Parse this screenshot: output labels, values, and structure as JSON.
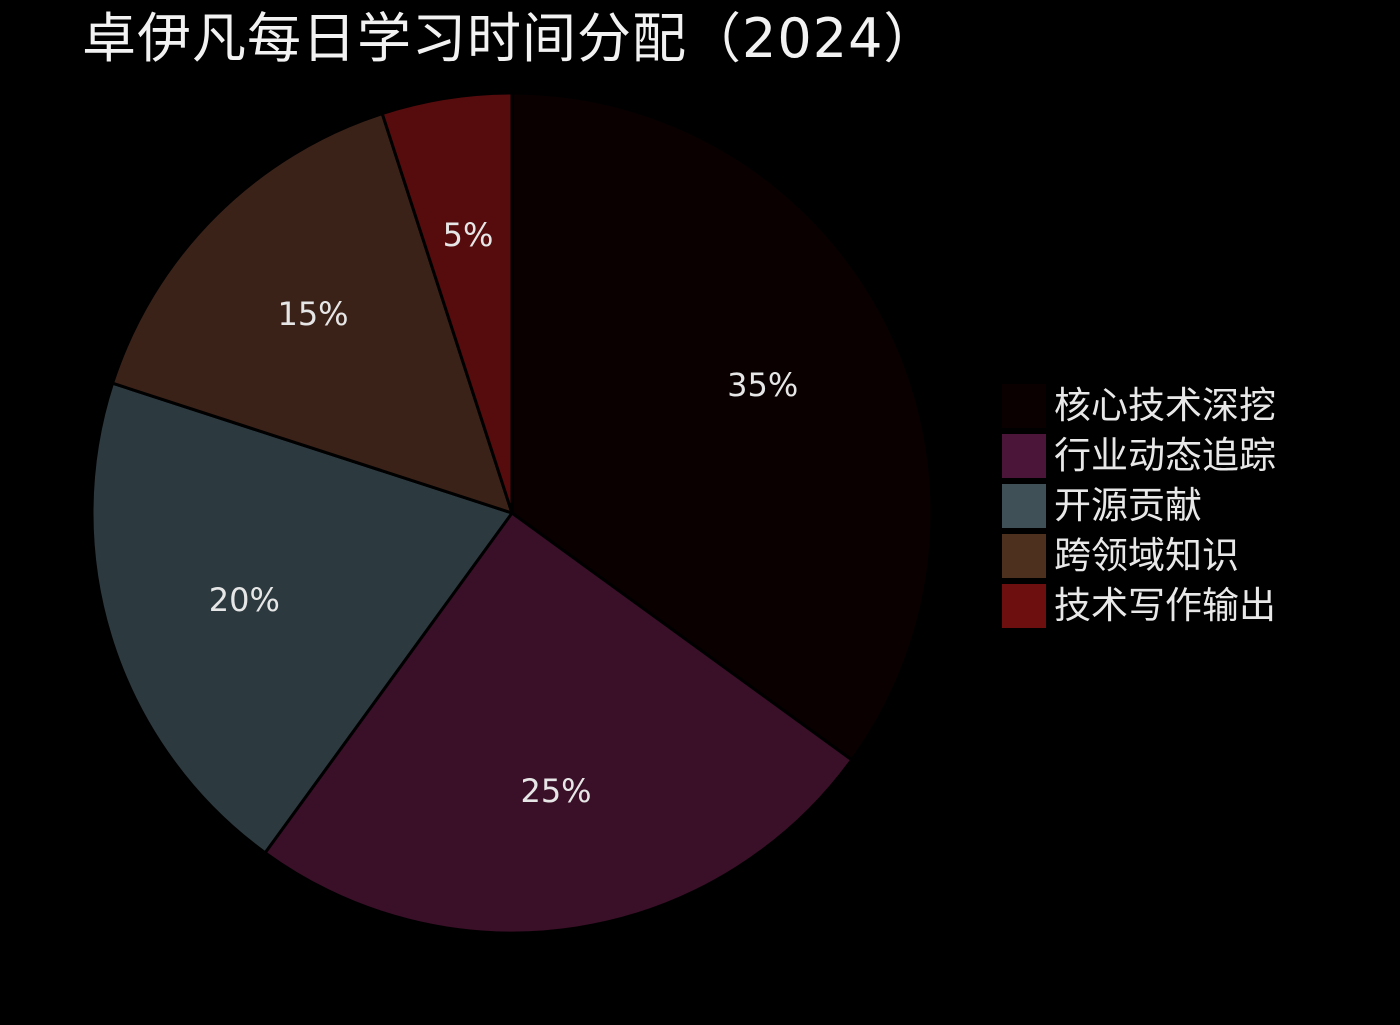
{
  "chart_data": {
    "type": "pie",
    "title": "卓伊凡每日学习时间分配（2024）",
    "categories": [
      "核心技术深挖",
      "行业动态追踪",
      "开源贡献",
      "跨领域知识",
      "技术写作输出"
    ],
    "values": [
      35,
      25,
      20,
      15,
      5
    ],
    "value_labels": [
      "35%",
      "25%",
      "20%",
      "15%",
      "5%"
    ],
    "colors": [
      "#0a0000",
      "#3a0f28",
      "#2c3a40",
      "#3b2219",
      "#560b0d"
    ],
    "legend_colors": [
      "#0a0000",
      "#4a1538",
      "#3f5156",
      "#4e301f",
      "#6e0f0f"
    ],
    "start_angle": "12 o'clock",
    "direction": "clockwise",
    "legend_position": "right"
  }
}
